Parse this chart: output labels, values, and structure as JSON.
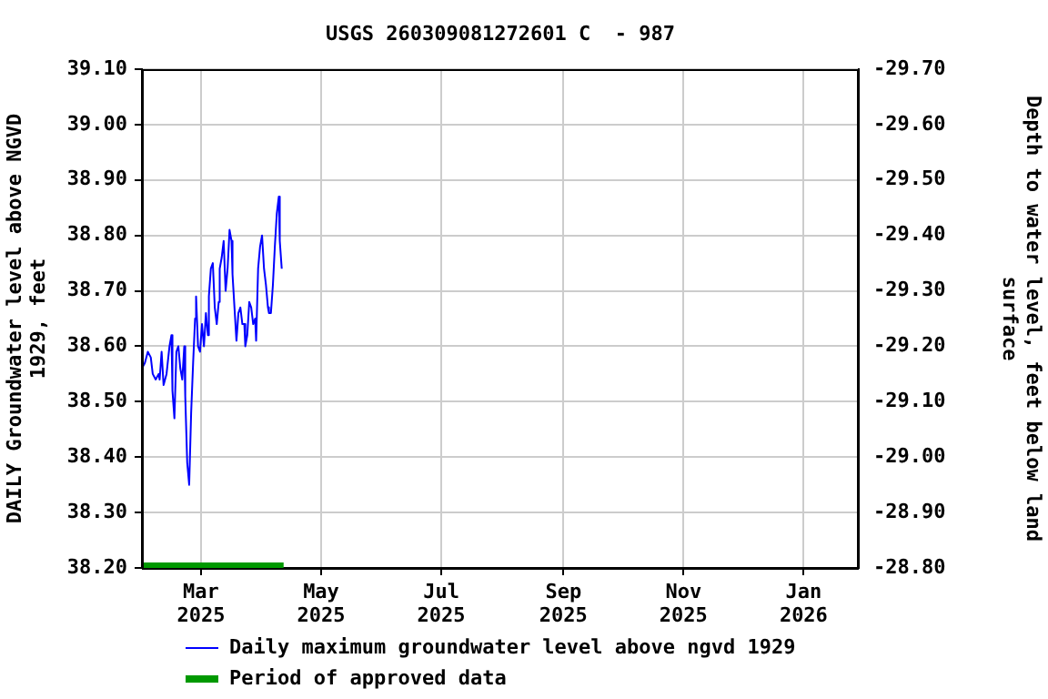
{
  "chart_data": {
    "type": "line",
    "title": "USGS 260309081272601 C  - 987",
    "ylabel": "DAILY Groundwater level above NGVD 1929, feet",
    "y2label": "Depth to water level, feet below land surface",
    "x": [
      "2025-01-30",
      "2025-01-31T12:00",
      "2025-02-02",
      "2025-02-03T12:00",
      "2025-02-04T12:00",
      "2025-02-06",
      "2025-02-07T12:00",
      "2025-02-08",
      "2025-02-09",
      "2025-02-10",
      "2025-02-11T12:00",
      "2025-02-13",
      "2025-02-14",
      "2025-02-14T12:00",
      "2025-02-15T12:00",
      "2025-02-16T12:00",
      "2025-02-17T12:00",
      "2025-02-18T12:00",
      "2025-02-19T12:00",
      "2025-02-20T12:00",
      "2025-02-21",
      "2025-02-22",
      "2025-02-23",
      "2025-02-24",
      "2025-02-25",
      "2025-02-26",
      "2025-02-26T12:00",
      "2025-02-27T12:00",
      "2025-02-28T12:00",
      "2025-03-01T12:00",
      "2025-03-02T12:00",
      "2025-03-03T12:00",
      "2025-03-04T12:00",
      "2025-03-05",
      "2025-03-06",
      "2025-03-07",
      "2025-03-08",
      "2025-03-09",
      "2025-03-10",
      "2025-03-10T12:00",
      "2025-03-11T12:00",
      "2025-03-12T12:00",
      "2025-03-13T12:00",
      "2025-03-14T12:00",
      "2025-03-15T12:00",
      "2025-03-16T12:00",
      "2025-03-17",
      "2025-03-18",
      "2025-03-19",
      "2025-03-20",
      "2025-03-21",
      "2025-03-22",
      "2025-03-23",
      "2025-03-23T12:00",
      "2025-03-24T12:00",
      "2025-03-25T12:00",
      "2025-03-26T12:00",
      "2025-03-27T12:00",
      "2025-03-28T12:00",
      "2025-03-29",
      "2025-03-30",
      "2025-03-31",
      "2025-04-01",
      "2025-04-02",
      "2025-04-03",
      "2025-04-04",
      "2025-04-04T12:00",
      "2025-04-05T12:00",
      "2025-04-06T12:00",
      "2025-04-07T12:00",
      "2025-04-08T12:00",
      "2025-04-09T12:00",
      "2025-04-10",
      "2025-04-11"
    ],
    "series": [
      {
        "name": "Daily maximum groundwater level above ngvd 1929",
        "color": "#0000ff",
        "values": [
          38.56,
          38.57,
          38.59,
          38.58,
          38.55,
          38.54,
          38.55,
          38.54,
          38.59,
          38.53,
          38.55,
          38.6,
          38.62,
          38.52,
          38.47,
          38.59,
          38.6,
          38.56,
          38.54,
          38.6,
          38.51,
          38.39,
          38.35,
          38.48,
          38.57,
          38.65,
          38.69,
          38.6,
          38.59,
          38.64,
          38.6,
          38.66,
          38.62,
          38.69,
          38.74,
          38.75,
          38.67,
          38.64,
          38.68,
          38.74,
          38.76,
          38.79,
          38.7,
          38.74,
          38.81,
          38.79,
          38.73,
          38.67,
          38.61,
          38.66,
          38.67,
          38.64,
          38.64,
          38.6,
          38.62,
          38.68,
          38.67,
          38.64,
          38.65,
          38.61,
          38.74,
          38.78,
          38.8,
          38.74,
          38.71,
          38.67,
          38.66,
          38.66,
          38.71,
          38.78,
          38.84,
          38.87,
          38.79,
          38.74
        ]
      },
      {
        "name": "Period of approved data",
        "type": "area",
        "color": "#009900",
        "x": [
          "2025-01-30",
          "2025-04-12"
        ],
        "values": [
          38.21,
          38.21
        ]
      }
    ],
    "xlim": [
      "2025-01-30",
      "2026-01-29"
    ],
    "xticks": [
      {
        "value": "2025-03-01",
        "label": "Mar 2025"
      },
      {
        "value": "2025-05-01",
        "label": "May 2025"
      },
      {
        "value": "2025-07-01",
        "label": "Jul 2025"
      },
      {
        "value": "2025-09-01",
        "label": "Sep 2025"
      },
      {
        "value": "2025-11-01",
        "label": "Nov 2025"
      },
      {
        "value": "2026-01-01",
        "label": "Jan 2026"
      }
    ],
    "ylim": [
      38.2,
      39.1
    ],
    "yticks": [
      {
        "value": 38.2,
        "label": "38.20"
      },
      {
        "value": 38.3,
        "label": "38.30"
      },
      {
        "value": 38.4,
        "label": "38.40"
      },
      {
        "value": 38.5,
        "label": "38.50"
      },
      {
        "value": 38.6,
        "label": "38.60"
      },
      {
        "value": 38.7,
        "label": "38.70"
      },
      {
        "value": 38.8,
        "label": "38.80"
      },
      {
        "value": 38.9,
        "label": "38.90"
      },
      {
        "value": 39.0,
        "label": "39.00"
      },
      {
        "value": 39.1,
        "label": "39.10"
      }
    ],
    "y2lim": [
      -28.8,
      -29.7
    ],
    "y2ticks": [
      {
        "value": -28.8,
        "label": "-28.80"
      },
      {
        "value": -28.9,
        "label": "-28.90"
      },
      {
        "value": -29.0,
        "label": "-29.00"
      },
      {
        "value": -29.1,
        "label": "-29.10"
      },
      {
        "value": -29.2,
        "label": "-29.20"
      },
      {
        "value": -29.3,
        "label": "-29.30"
      },
      {
        "value": -29.4,
        "label": "-29.40"
      },
      {
        "value": -29.5,
        "label": "-29.50"
      },
      {
        "value": -29.6,
        "label": "-29.60"
      },
      {
        "value": -29.7,
        "label": "-29.70"
      }
    ],
    "grid": true,
    "legend": "bottom",
    "marker": "none"
  }
}
